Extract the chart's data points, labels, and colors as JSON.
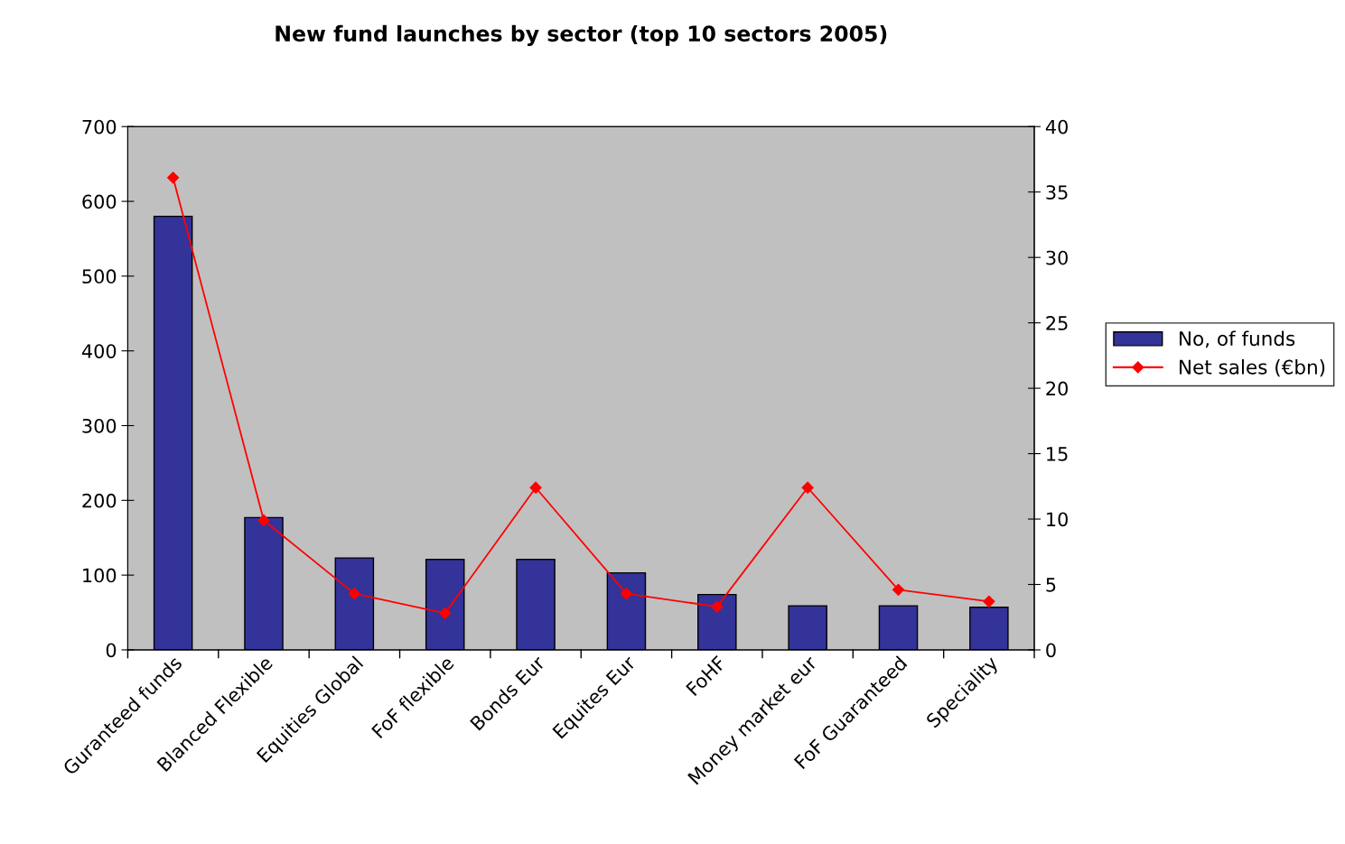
{
  "chart_data": {
    "type": "bar",
    "title": "New fund launches by sector (top 10 sectors 2005)",
    "categories": [
      "Guranteed funds",
      "Blanced Flexible",
      "Equities Global",
      "FoF flexible",
      "Bonds Eur",
      "Equites Eur",
      "FoHF",
      "Money market eur",
      "FoF Guaranteed",
      "Speciality"
    ],
    "series": [
      {
        "name": "No, of funds",
        "color": "#333399",
        "values": [
          580,
          177,
          123,
          121,
          121,
          103,
          74,
          59,
          59,
          57
        ]
      },
      {
        "name": "Net sales (€bn)",
        "type": "line",
        "axis": "y2",
        "color": "#ff0000",
        "marker": "diamond",
        "values": [
          36.1,
          9.9,
          4.3,
          2.8,
          12.4,
          4.3,
          3.3,
          12.4,
          4.6,
          3.7
        ]
      }
    ],
    "ylim": [
      0,
      700
    ],
    "yticks": [
      0,
      100,
      200,
      300,
      400,
      500,
      600,
      700
    ],
    "y2lim": [
      0,
      40
    ],
    "y2ticks": [
      0,
      5,
      10,
      15,
      20,
      25,
      30,
      35,
      40
    ],
    "grid": false,
    "legend": "right"
  }
}
